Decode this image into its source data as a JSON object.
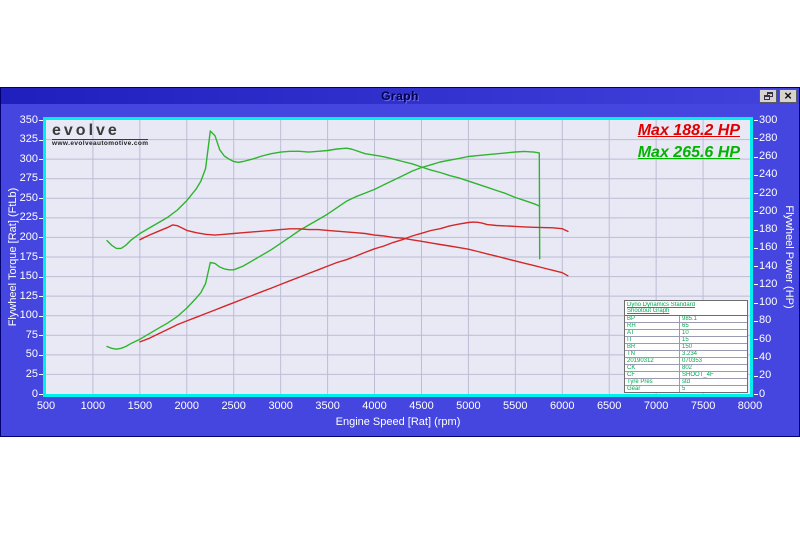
{
  "window": {
    "title": "Graph",
    "close_glyph": "×"
  },
  "logo": {
    "brand": "evolve",
    "website": "www.evolveautomotive.com"
  },
  "annotations": {
    "max_power_run1": "Max 188.2 HP",
    "max_power_run2": "Max 265.6 HP"
  },
  "info_table": {
    "title_line1": "Dyno Dynamics Standard",
    "title_line2": "Shootout Graph",
    "rows": [
      {
        "label": "BP",
        "value": "985.1"
      },
      {
        "label": "RH",
        "value": "65"
      },
      {
        "label": "AT",
        "value": "10"
      },
      {
        "label": "IT",
        "value": "15"
      },
      {
        "label": "BR",
        "value": "150"
      },
      {
        "label": "TN",
        "value": "3.234"
      },
      {
        "label": "20190312",
        "value": "070353"
      },
      {
        "label": "CK",
        "value": "802"
      },
      {
        "label": "CF",
        "value": "SHOOT_4F"
      },
      {
        "label": "Tyre Pres",
        "value": "std"
      },
      {
        "label": "Gear",
        "value": "5"
      }
    ]
  },
  "chart_data": {
    "type": "line",
    "title": "Graph",
    "xlabel": "Engine Speed [Rat] (rpm)",
    "ylabel_left": "Flywheel Torque [Rat] (FtLb)",
    "ylabel_right": "Flywheel Power (HP)",
    "xlim": [
      500,
      8000
    ],
    "ylim_left": [
      0,
      350
    ],
    "ylim_right": [
      0,
      300
    ],
    "x_ticks": [
      500,
      1000,
      1500,
      2000,
      2500,
      3000,
      3500,
      4000,
      4500,
      5000,
      5500,
      6000,
      6500,
      7000,
      7500,
      8000
    ],
    "y_ticks_left": [
      0,
      25,
      50,
      75,
      100,
      125,
      150,
      175,
      200,
      225,
      250,
      275,
      300,
      325,
      350
    ],
    "y_ticks_right": [
      0,
      20,
      40,
      60,
      80,
      100,
      120,
      140,
      160,
      180,
      200,
      220,
      240,
      260,
      280,
      300
    ],
    "grid": true,
    "legend_position": "none",
    "series": [
      {
        "name": "Flywheel Torque run 2 (green)",
        "axis": "left",
        "color": "#2db52d",
        "points": [
          [
            1150,
            196
          ],
          [
            1200,
            190
          ],
          [
            1250,
            186
          ],
          [
            1300,
            186
          ],
          [
            1350,
            190
          ],
          [
            1400,
            196
          ],
          [
            1500,
            205
          ],
          [
            1600,
            212
          ],
          [
            1700,
            219
          ],
          [
            1800,
            226
          ],
          [
            1900,
            235
          ],
          [
            2000,
            247
          ],
          [
            2100,
            262
          ],
          [
            2150,
            272
          ],
          [
            2200,
            288
          ],
          [
            2250,
            336
          ],
          [
            2300,
            330
          ],
          [
            2350,
            312
          ],
          [
            2400,
            304
          ],
          [
            2450,
            300
          ],
          [
            2500,
            297
          ],
          [
            2550,
            296
          ],
          [
            2600,
            297
          ],
          [
            2700,
            300
          ],
          [
            2800,
            304
          ],
          [
            2900,
            307
          ],
          [
            3000,
            309
          ],
          [
            3100,
            310
          ],
          [
            3200,
            310
          ],
          [
            3300,
            309
          ],
          [
            3400,
            310
          ],
          [
            3500,
            311
          ],
          [
            3600,
            313
          ],
          [
            3700,
            314
          ],
          [
            3750,
            313
          ],
          [
            3800,
            311
          ],
          [
            3900,
            307
          ],
          [
            4000,
            305
          ],
          [
            4100,
            303
          ],
          [
            4200,
            300
          ],
          [
            4300,
            297
          ],
          [
            4400,
            294
          ],
          [
            4500,
            290
          ],
          [
            4600,
            286
          ],
          [
            4700,
            283
          ],
          [
            4800,
            279
          ],
          [
            4900,
            276
          ],
          [
            5000,
            272
          ],
          [
            5100,
            268
          ],
          [
            5200,
            264
          ],
          [
            5300,
            260
          ],
          [
            5400,
            256
          ],
          [
            5500,
            251
          ],
          [
            5600,
            247
          ],
          [
            5700,
            243
          ],
          [
            5760,
            240
          ]
        ]
      },
      {
        "name": "Flywheel Power run 2 (green, max 265.6 HP)",
        "axis": "right",
        "color": "#2db52d",
        "points": [
          [
            1150,
            52
          ],
          [
            1200,
            50
          ],
          [
            1250,
            49
          ],
          [
            1300,
            50
          ],
          [
            1350,
            52
          ],
          [
            1400,
            55
          ],
          [
            1500,
            60
          ],
          [
            1600,
            66
          ],
          [
            1700,
            72
          ],
          [
            1800,
            78
          ],
          [
            1900,
            85
          ],
          [
            2000,
            94
          ],
          [
            2100,
            105
          ],
          [
            2150,
            111
          ],
          [
            2200,
            121
          ],
          [
            2250,
            144
          ],
          [
            2300,
            143
          ],
          [
            2350,
            139
          ],
          [
            2400,
            137
          ],
          [
            2450,
            136
          ],
          [
            2500,
            136
          ],
          [
            2600,
            140
          ],
          [
            2700,
            146
          ],
          [
            2800,
            152
          ],
          [
            2900,
            158
          ],
          [
            3000,
            165
          ],
          [
            3100,
            172
          ],
          [
            3200,
            179
          ],
          [
            3300,
            185
          ],
          [
            3400,
            191
          ],
          [
            3500,
            197
          ],
          [
            3600,
            204
          ],
          [
            3700,
            211
          ],
          [
            3800,
            216
          ],
          [
            3900,
            220
          ],
          [
            4000,
            224
          ],
          [
            4100,
            229
          ],
          [
            4200,
            234
          ],
          [
            4300,
            239
          ],
          [
            4400,
            244
          ],
          [
            4500,
            248
          ],
          [
            4600,
            251
          ],
          [
            4700,
            254
          ],
          [
            4800,
            256
          ],
          [
            4900,
            258
          ],
          [
            5000,
            260
          ],
          [
            5100,
            261
          ],
          [
            5200,
            262
          ],
          [
            5300,
            263
          ],
          [
            5400,
            264
          ],
          [
            5500,
            265
          ],
          [
            5600,
            265.6
          ],
          [
            5650,
            265.2
          ],
          [
            5700,
            264.8
          ],
          [
            5755,
            264
          ],
          [
            5760,
            148
          ]
        ]
      },
      {
        "name": "Flywheel Torque run 1 (red)",
        "axis": "left",
        "color": "#d22828",
        "points": [
          [
            1500,
            197
          ],
          [
            1550,
            200
          ],
          [
            1600,
            203
          ],
          [
            1700,
            208
          ],
          [
            1800,
            213
          ],
          [
            1850,
            216
          ],
          [
            1900,
            215
          ],
          [
            1950,
            212
          ],
          [
            2000,
            209
          ],
          [
            2100,
            206
          ],
          [
            2200,
            204
          ],
          [
            2300,
            203
          ],
          [
            2400,
            204
          ],
          [
            2500,
            205
          ],
          [
            2600,
            206
          ],
          [
            2700,
            207
          ],
          [
            2800,
            208
          ],
          [
            2900,
            209
          ],
          [
            3000,
            210
          ],
          [
            3100,
            211
          ],
          [
            3200,
            211
          ],
          [
            3300,
            210
          ],
          [
            3400,
            210
          ],
          [
            3500,
            209
          ],
          [
            3600,
            208
          ],
          [
            3700,
            207
          ],
          [
            3800,
            206
          ],
          [
            3900,
            205
          ],
          [
            4000,
            203
          ],
          [
            4100,
            202
          ],
          [
            4200,
            200
          ],
          [
            4300,
            199
          ],
          [
            4400,
            197
          ],
          [
            4500,
            195
          ],
          [
            4600,
            193
          ],
          [
            4700,
            191
          ],
          [
            4800,
            189
          ],
          [
            4900,
            187
          ],
          [
            5000,
            185
          ],
          [
            5100,
            182
          ],
          [
            5200,
            179
          ],
          [
            5300,
            176
          ],
          [
            5400,
            173
          ],
          [
            5500,
            170
          ],
          [
            5600,
            167
          ],
          [
            5700,
            164
          ],
          [
            5800,
            161
          ],
          [
            5900,
            158
          ],
          [
            6000,
            155
          ],
          [
            6060,
            151
          ]
        ]
      },
      {
        "name": "Flywheel Power run 1 (red, max 188.2 HP)",
        "axis": "right",
        "color": "#d22828",
        "points": [
          [
            1500,
            57
          ],
          [
            1600,
            61
          ],
          [
            1700,
            66
          ],
          [
            1800,
            71
          ],
          [
            1900,
            76
          ],
          [
            2000,
            80
          ],
          [
            2100,
            84
          ],
          [
            2200,
            88
          ],
          [
            2300,
            92
          ],
          [
            2400,
            96
          ],
          [
            2500,
            100
          ],
          [
            2600,
            104
          ],
          [
            2700,
            108
          ],
          [
            2800,
            112
          ],
          [
            2900,
            116
          ],
          [
            3000,
            120
          ],
          [
            3100,
            124
          ],
          [
            3200,
            128
          ],
          [
            3300,
            132
          ],
          [
            3400,
            136
          ],
          [
            3500,
            140
          ],
          [
            3600,
            144
          ],
          [
            3700,
            147
          ],
          [
            3800,
            151
          ],
          [
            3900,
            155
          ],
          [
            4000,
            159
          ],
          [
            4100,
            162
          ],
          [
            4200,
            166
          ],
          [
            4300,
            169
          ],
          [
            4400,
            173
          ],
          [
            4500,
            176
          ],
          [
            4600,
            179
          ],
          [
            4700,
            181
          ],
          [
            4800,
            184
          ],
          [
            4900,
            186
          ],
          [
            5000,
            187.8
          ],
          [
            5050,
            188.2
          ],
          [
            5100,
            188
          ],
          [
            5150,
            187
          ],
          [
            5200,
            185.5
          ],
          [
            5300,
            184.5
          ],
          [
            5400,
            184
          ],
          [
            5500,
            183.5
          ],
          [
            5600,
            183
          ],
          [
            5700,
            182.5
          ],
          [
            5800,
            182.2
          ],
          [
            5900,
            182
          ],
          [
            6000,
            181
          ],
          [
            6060,
            178
          ]
        ]
      }
    ]
  }
}
